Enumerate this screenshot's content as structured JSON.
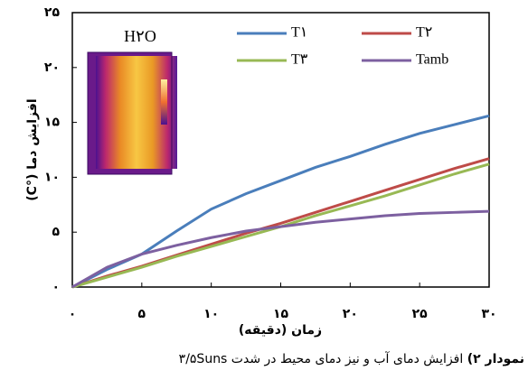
{
  "chart_data": {
    "type": "line",
    "x_label": "زمان (دقیقه)",
    "y_label": "افزایش دما (°C)",
    "inset_label": "H۲O",
    "x": [
      0,
      2.5,
      5,
      7.5,
      10,
      12.5,
      15,
      17.5,
      20,
      22.5,
      25,
      27.5,
      30
    ],
    "series": [
      {
        "name": "T۱",
        "color": "#4a7ebb",
        "values": [
          0,
          1.6,
          3.0,
          5.1,
          7.1,
          8.5,
          9.7,
          10.9,
          11.9,
          13.0,
          14.0,
          14.8,
          15.6
        ]
      },
      {
        "name": "T۲",
        "color": "#be4b48",
        "values": [
          0,
          1.0,
          1.9,
          2.9,
          3.9,
          4.9,
          5.8,
          6.8,
          7.8,
          8.8,
          9.8,
          10.8,
          11.7
        ]
      },
      {
        "name": "T۳",
        "color": "#98b954",
        "values": [
          0,
          0.9,
          1.8,
          2.8,
          3.7,
          4.6,
          5.5,
          6.5,
          7.4,
          8.3,
          9.3,
          10.3,
          11.2
        ]
      },
      {
        "name": "Tamb",
        "color": "#7d60a0",
        "values": [
          0,
          1.8,
          3.0,
          3.8,
          4.5,
          5.1,
          5.5,
          5.9,
          6.2,
          6.5,
          6.7,
          6.8,
          6.9
        ]
      }
    ],
    "xlim": [
      0,
      30
    ],
    "xticks": [
      {
        "value": 0,
        "label": "۰"
      },
      {
        "value": 5,
        "label": "۵"
      },
      {
        "value": 10,
        "label": "۱۰"
      },
      {
        "value": 15,
        "label": "۱۵"
      },
      {
        "value": 20,
        "label": "۲۰"
      },
      {
        "value": 25,
        "label": "۲۵"
      },
      {
        "value": 30,
        "label": "۳۰"
      }
    ],
    "ylim": [
      0,
      25
    ],
    "yticks": [
      {
        "value": 0,
        "label": "۰"
      },
      {
        "value": 5,
        "label": "۵"
      },
      {
        "value": 10,
        "label": "۱۰"
      },
      {
        "value": 15,
        "label": "۱۵"
      },
      {
        "value": 20,
        "label": "۲۰"
      },
      {
        "value": 25,
        "label": "۲۵"
      }
    ],
    "caption_lead": "نمودار ۲)",
    "caption": "افزایش دمای آب و نیز دمای محیط در شدت ۳/۵Suns"
  }
}
